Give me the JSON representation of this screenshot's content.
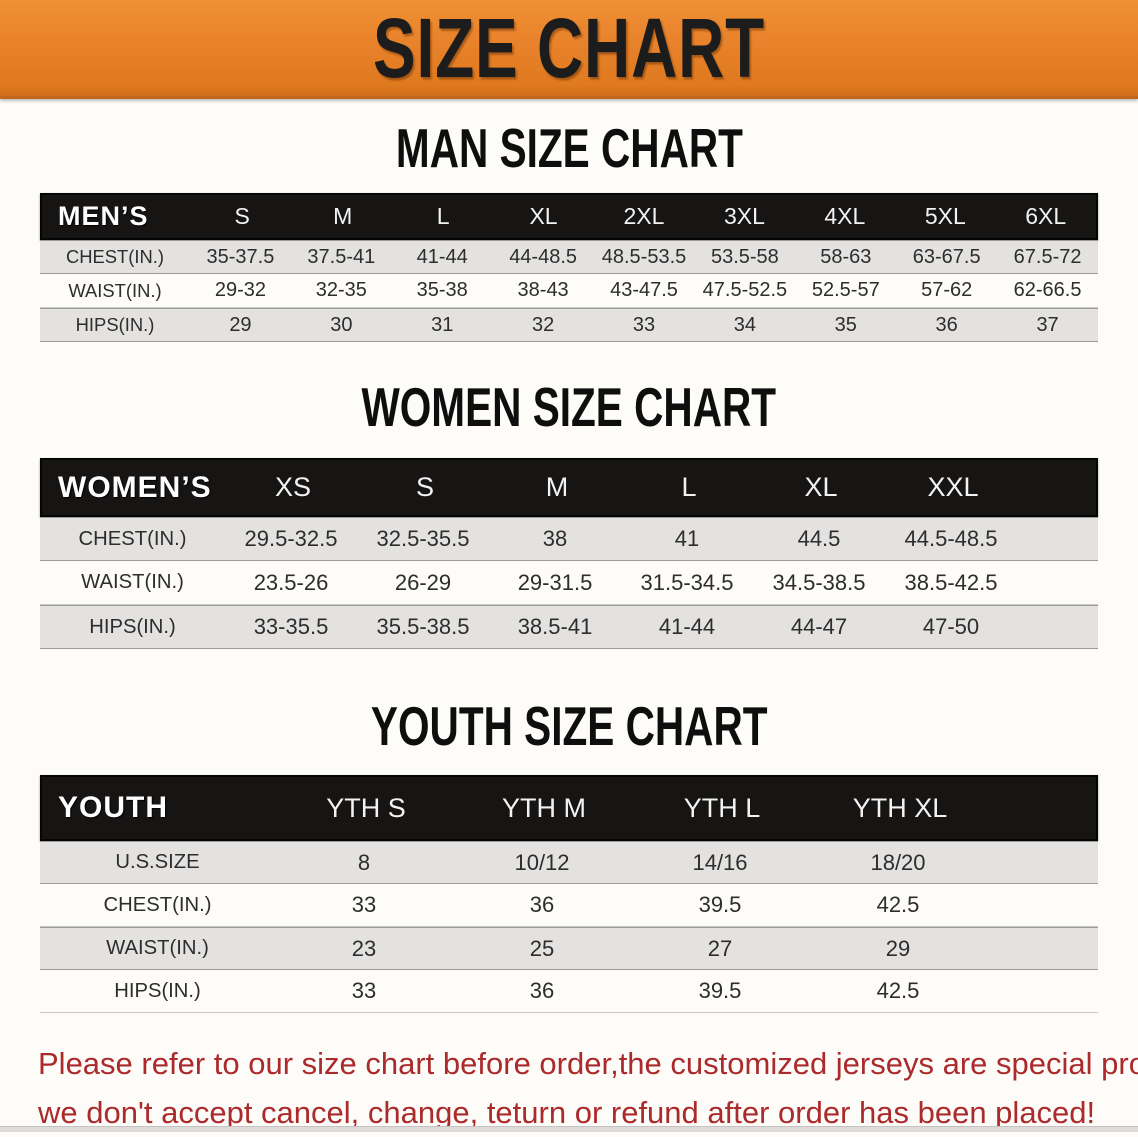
{
  "banner": {
    "title": "SIZE CHART",
    "bg_color": "#e8822b",
    "text_color": "#1c1c1c"
  },
  "colors": {
    "table_header_bg": "#171514",
    "table_header_text": "#ffffff",
    "row_shaded_bg": "#e3e2e0",
    "row_plain_bg": "#fdfcf9",
    "notice_text": "#ab2a2b"
  },
  "sections": [
    {
      "id": "men",
      "title": "MAN SIZE CHART",
      "header_label": "MEN’S",
      "columns": [
        "S",
        "M",
        "L",
        "XL",
        "2XL",
        "3XL",
        "4XL",
        "5XL",
        "6XL"
      ],
      "rows": [
        {
          "label": "CHEST(IN.)",
          "values": [
            "35-37.5",
            "37.5-41",
            "41-44",
            "44-48.5",
            "48.5-53.5",
            "53.5-58",
            "58-63",
            "63-67.5",
            "67.5-72"
          ]
        },
        {
          "label": "WAIST(IN.)",
          "values": [
            "29-32",
            "32-35",
            "35-38",
            "38-43",
            "43-47.5",
            "47.5-52.5",
            "52.5-57",
            "57-62",
            "62-66.5"
          ]
        },
        {
          "label": "HIPS(IN.)",
          "values": [
            "29",
            "30",
            "31",
            "32",
            "33",
            "34",
            "35",
            "36",
            "37"
          ]
        }
      ]
    },
    {
      "id": "women",
      "title": "WOMEN SIZE CHART",
      "header_label": "WOMEN’S",
      "columns": [
        "XS",
        "S",
        "M",
        "L",
        "XL",
        "XXL"
      ],
      "rows": [
        {
          "label": "CHEST(IN.)",
          "values": [
            "29.5-32.5",
            "32.5-35.5",
            "38",
            "41",
            "44.5",
            "44.5-48.5"
          ]
        },
        {
          "label": "WAIST(IN.)",
          "values": [
            "23.5-26",
            "26-29",
            "29-31.5",
            "31.5-34.5",
            "34.5-38.5",
            "38.5-42.5"
          ]
        },
        {
          "label": "HIPS(IN.)",
          "values": [
            "33-35.5",
            "35.5-38.5",
            "38.5-41",
            "41-44",
            "44-47",
            "47-50"
          ]
        }
      ]
    },
    {
      "id": "youth",
      "title": "YOUTH SIZE CHART",
      "header_label": "YOUTH",
      "columns": [
        "YTH S",
        "YTH M",
        "YTH L",
        "YTH XL"
      ],
      "rows": [
        {
          "label": "U.S.SIZE",
          "values": [
            "8",
            "10/12",
            "14/16",
            "18/20"
          ]
        },
        {
          "label": "CHEST(IN.)",
          "values": [
            "33",
            "36",
            "39.5",
            "42.5"
          ]
        },
        {
          "label": "WAIST(IN.)",
          "values": [
            "23",
            "25",
            "27",
            "29"
          ]
        },
        {
          "label": "HIPS(IN.)",
          "values": [
            "33",
            "36",
            "39.5",
            "42.5"
          ]
        }
      ]
    }
  ],
  "footer": {
    "lines": [
      "Please refer to our size chart before order,the customized jerseys are special products,",
      "we don't accept cancel, change, teturn or refund after order has been placed!"
    ]
  }
}
